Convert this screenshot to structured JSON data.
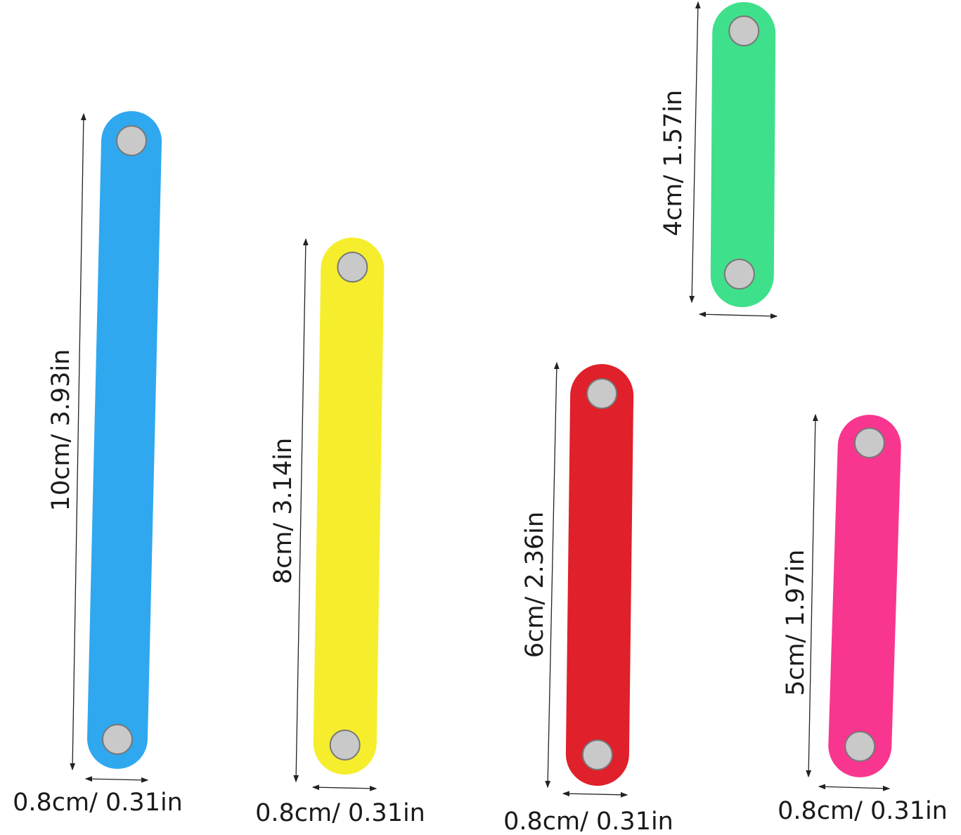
{
  "strips": [
    {
      "color": "#2fa8ef",
      "length_label": "10cm/ 3.93in",
      "width_label": "0.8cm/ 0.31in"
    },
    {
      "color": "#f6ee2c",
      "length_label": "8cm/ 3.14in",
      "width_label": "0.8cm/ 0.31in"
    },
    {
      "color": "#e0202a",
      "length_label": "6cm/ 2.36in",
      "width_label": "0.8cm/ 0.31in"
    },
    {
      "color": "#3fe08b",
      "length_label": "4cm/ 1.57in"
    },
    {
      "color": "#f8368f",
      "length_label": "5cm/ 1.97in",
      "width_label": "0.8cm/ 0.31in"
    }
  ]
}
